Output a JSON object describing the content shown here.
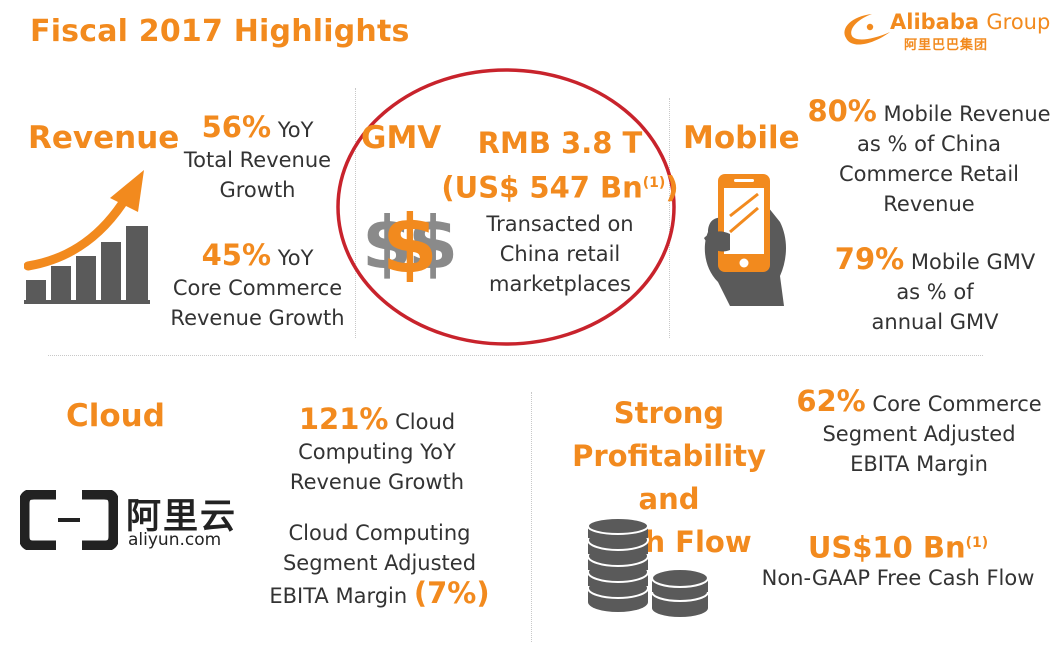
{
  "title": "Fiscal 2017 Highlights",
  "logo": {
    "name_en": "Alibaba",
    "name_group": "Group",
    "name_cn": "阿里巴巴集团"
  },
  "revenue": {
    "heading": "Revenue",
    "stat1_value": "56%",
    "stat1_suffix": " YoY",
    "stat1_line2": "Total Revenue",
    "stat1_line3": "Growth",
    "stat2_value": "45%",
    "stat2_suffix": " YoY",
    "stat2_line2": "Core Commerce",
    "stat2_line3": "Revenue Growth"
  },
  "gmv": {
    "heading": "GMV",
    "value_rmb": "RMB 3.8 T",
    "value_usd": "(US$ 547 Bn",
    "footnote": "(1)",
    "close_paren": ")",
    "desc_line1": "Transacted on",
    "desc_line2": "China retail",
    "desc_line3": "marketplaces"
  },
  "mobile": {
    "heading": "Mobile",
    "stat1_value": "80%",
    "stat1_suffix": " Mobile Revenue",
    "stat1_line2": "as % of China",
    "stat1_line3": "Commerce Retail",
    "stat1_line4": "Revenue",
    "stat2_value": "79%",
    "stat2_suffix": " Mobile GMV",
    "stat2_line2": "as % of",
    "stat2_line3": "annual GMV"
  },
  "cloud": {
    "heading": "Cloud",
    "logo_cn": "阿里云",
    "logo_en": "aliyun.com",
    "stat1_value": "121%",
    "stat1_suffix": " Cloud",
    "stat1_line2": "Computing YoY",
    "stat1_line3": "Revenue Growth",
    "stat2_line1": "Cloud Computing",
    "stat2_line2": "Segment Adjusted",
    "stat2_line3": "EBITA Margin ",
    "stat2_value": "(7%)"
  },
  "profit": {
    "heading_line1": "Strong",
    "heading_line2": "Profitability and",
    "heading_line3": "Cash Flow",
    "stat1_value": "62%",
    "stat1_suffix": " Core Commerce",
    "stat1_line2": "Segment Adjusted",
    "stat1_line3": "EBITA Margin",
    "stat2_value": "US$10 Bn",
    "stat2_footnote": "(1)",
    "stat2_line2": "Non-GAAP Free Cash Flow"
  },
  "colors": {
    "accent": "#f28a1e",
    "highlight_circle": "#c8232c",
    "icon_gray": "#5a5a5a"
  }
}
